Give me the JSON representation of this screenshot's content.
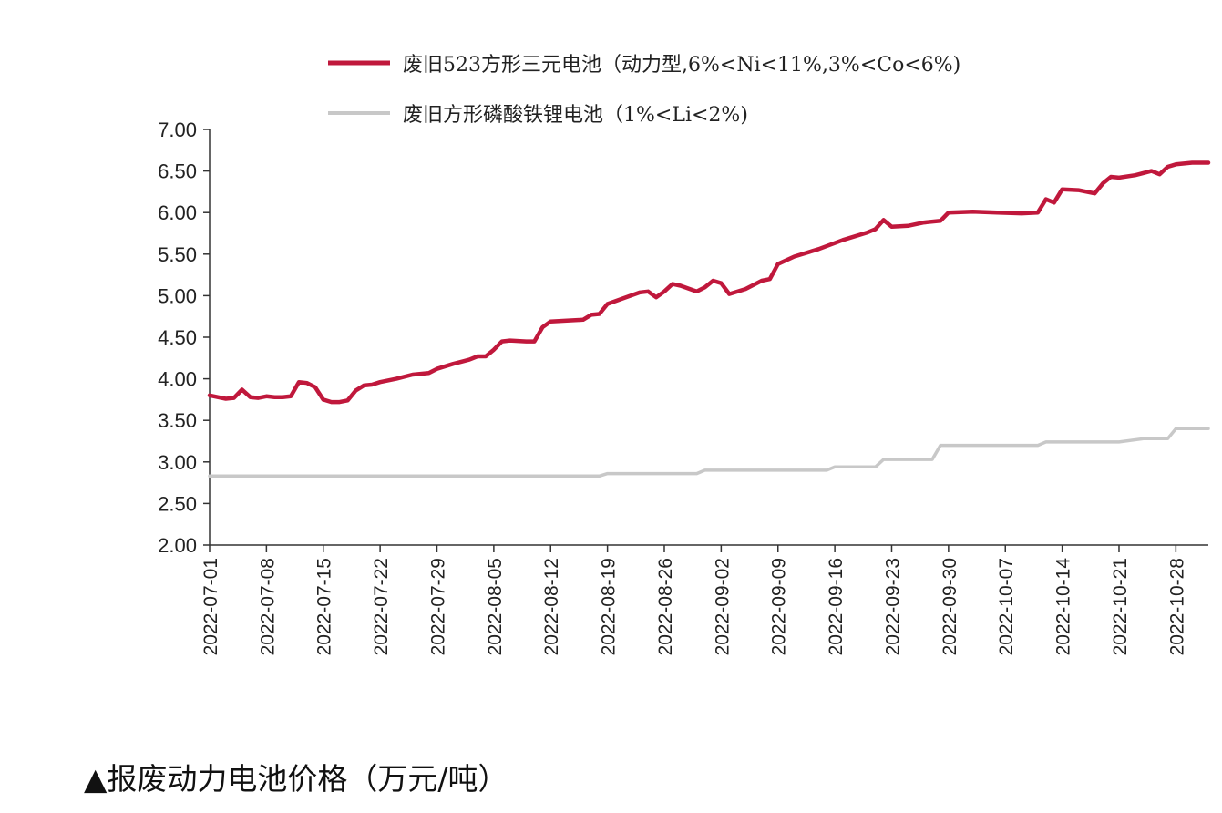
{
  "caption": "▲报废动力电池价格（万元/吨）",
  "chart_data": {
    "type": "line",
    "title": "",
    "xlabel": "",
    "ylabel": "",
    "ylim": [
      2.0,
      7.0
    ],
    "y_ticks": [
      "2.00",
      "2.50",
      "3.00",
      "3.50",
      "4.00",
      "4.50",
      "5.00",
      "5.50",
      "6.00",
      "6.50",
      "7.00"
    ],
    "x_ticks": [
      "2022-07-01",
      "2022-07-08",
      "2022-07-15",
      "2022-07-22",
      "2022-07-29",
      "2022-08-05",
      "2022-08-12",
      "2022-08-19",
      "2022-08-26",
      "2022-09-02",
      "2022-09-09",
      "2022-09-16",
      "2022-09-23",
      "2022-09-30",
      "2022-10-07",
      "2022-10-14",
      "2022-10-21",
      "2022-10-28"
    ],
    "x_range": [
      "2022-07-01",
      "2022-11-01"
    ],
    "grid": false,
    "legend_position": "top",
    "series": [
      {
        "name": "废旧523方形三元电池（动力型,6%<Ni<11%,3%<Co<6%)",
        "color": "#c0183c",
        "points": [
          [
            "2022-07-01",
            3.8
          ],
          [
            "2022-07-02",
            3.78
          ],
          [
            "2022-07-03",
            3.76
          ],
          [
            "2022-07-04",
            3.77
          ],
          [
            "2022-07-05",
            3.87
          ],
          [
            "2022-07-06",
            3.78
          ],
          [
            "2022-07-07",
            3.77
          ],
          [
            "2022-07-08",
            3.79
          ],
          [
            "2022-07-09",
            3.78
          ],
          [
            "2022-07-10",
            3.78
          ],
          [
            "2022-07-11",
            3.79
          ],
          [
            "2022-07-12",
            3.96
          ],
          [
            "2022-07-13",
            3.95
          ],
          [
            "2022-07-14",
            3.9
          ],
          [
            "2022-07-15",
            3.75
          ],
          [
            "2022-07-16",
            3.72
          ],
          [
            "2022-07-17",
            3.72
          ],
          [
            "2022-07-18",
            3.74
          ],
          [
            "2022-07-19",
            3.86
          ],
          [
            "2022-07-20",
            3.92
          ],
          [
            "2022-07-21",
            3.93
          ],
          [
            "2022-07-22",
            3.96
          ],
          [
            "2022-07-24",
            4.0
          ],
          [
            "2022-07-26",
            4.05
          ],
          [
            "2022-07-28",
            4.07
          ],
          [
            "2022-07-29",
            4.12
          ],
          [
            "2022-07-31",
            4.18
          ],
          [
            "2022-08-02",
            4.23
          ],
          [
            "2022-08-03",
            4.27
          ],
          [
            "2022-08-04",
            4.27
          ],
          [
            "2022-08-05",
            4.35
          ],
          [
            "2022-08-06",
            4.45
          ],
          [
            "2022-08-07",
            4.46
          ],
          [
            "2022-08-09",
            4.45
          ],
          [
            "2022-08-10",
            4.45
          ],
          [
            "2022-08-11",
            4.62
          ],
          [
            "2022-08-12",
            4.69
          ],
          [
            "2022-08-14",
            4.7
          ],
          [
            "2022-08-16",
            4.71
          ],
          [
            "2022-08-17",
            4.77
          ],
          [
            "2022-08-18",
            4.78
          ],
          [
            "2022-08-19",
            4.9
          ],
          [
            "2022-08-21",
            4.97
          ],
          [
            "2022-08-23",
            5.04
          ],
          [
            "2022-08-24",
            5.05
          ],
          [
            "2022-08-25",
            4.98
          ],
          [
            "2022-08-26",
            5.05
          ],
          [
            "2022-08-27",
            5.14
          ],
          [
            "2022-08-28",
            5.12
          ],
          [
            "2022-08-30",
            5.05
          ],
          [
            "2022-08-31",
            5.1
          ],
          [
            "2022-09-01",
            5.18
          ],
          [
            "2022-09-02",
            5.15
          ],
          [
            "2022-09-03",
            5.02
          ],
          [
            "2022-09-05",
            5.08
          ],
          [
            "2022-09-07",
            5.18
          ],
          [
            "2022-09-08",
            5.2
          ],
          [
            "2022-09-09",
            5.38
          ],
          [
            "2022-09-11",
            5.47
          ],
          [
            "2022-09-14",
            5.56
          ],
          [
            "2022-09-17",
            5.67
          ],
          [
            "2022-09-20",
            5.76
          ],
          [
            "2022-09-21",
            5.8
          ],
          [
            "2022-09-22",
            5.91
          ],
          [
            "2022-09-23",
            5.83
          ],
          [
            "2022-09-25",
            5.84
          ],
          [
            "2022-09-27",
            5.88
          ],
          [
            "2022-09-29",
            5.9
          ],
          [
            "2022-09-30",
            6.0
          ],
          [
            "2022-10-03",
            6.01
          ],
          [
            "2022-10-06",
            6.0
          ],
          [
            "2022-10-09",
            5.99
          ],
          [
            "2022-10-11",
            6.0
          ],
          [
            "2022-10-12",
            6.16
          ],
          [
            "2022-10-13",
            6.12
          ],
          [
            "2022-10-14",
            6.28
          ],
          [
            "2022-10-16",
            6.27
          ],
          [
            "2022-10-18",
            6.23
          ],
          [
            "2022-10-19",
            6.35
          ],
          [
            "2022-10-20",
            6.43
          ],
          [
            "2022-10-21",
            6.42
          ],
          [
            "2022-10-23",
            6.45
          ],
          [
            "2022-10-25",
            6.5
          ],
          [
            "2022-10-26",
            6.46
          ],
          [
            "2022-10-27",
            6.55
          ],
          [
            "2022-10-28",
            6.58
          ],
          [
            "2022-10-30",
            6.6
          ],
          [
            "2022-11-01",
            6.6
          ]
        ]
      },
      {
        "name": "废旧方形磷酸铁锂电池（1%<Li<2%)",
        "color": "#c8c8c8",
        "points": [
          [
            "2022-07-01",
            2.83
          ],
          [
            "2022-08-18",
            2.83
          ],
          [
            "2022-08-19",
            2.86
          ],
          [
            "2022-08-30",
            2.86
          ],
          [
            "2022-08-31",
            2.9
          ],
          [
            "2022-09-15",
            2.9
          ],
          [
            "2022-09-16",
            2.94
          ],
          [
            "2022-09-21",
            2.94
          ],
          [
            "2022-09-22",
            3.03
          ],
          [
            "2022-09-28",
            3.03
          ],
          [
            "2022-09-29",
            3.2
          ],
          [
            "2022-10-11",
            3.2
          ],
          [
            "2022-10-12",
            3.24
          ],
          [
            "2022-10-21",
            3.24
          ],
          [
            "2022-10-24",
            3.28
          ],
          [
            "2022-10-27",
            3.28
          ],
          [
            "2022-10-28",
            3.4
          ],
          [
            "2022-11-01",
            3.4
          ]
        ]
      }
    ]
  }
}
